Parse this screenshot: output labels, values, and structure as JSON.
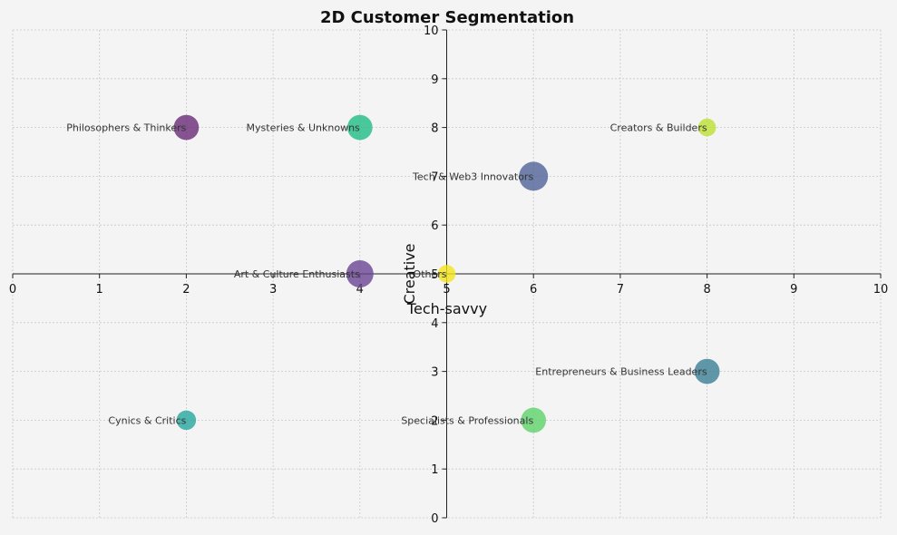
{
  "chart_data": {
    "type": "scatter",
    "title": "2D Customer Segmentation",
    "xlabel": "Tech-savvy",
    "ylabel": "Creative",
    "xlim": [
      0,
      10
    ],
    "ylim": [
      0,
      10
    ],
    "xticks": [
      0,
      1,
      2,
      3,
      4,
      5,
      6,
      7,
      8,
      9,
      10
    ],
    "yticks": [
      0,
      1,
      2,
      3,
      4,
      5,
      6,
      7,
      8,
      9,
      10
    ],
    "grid": true,
    "axes_centered": true,
    "points": [
      {
        "label": "Philosophers & Thinkers",
        "x": 2,
        "y": 8,
        "size": 3,
        "color": "#6a2a78"
      },
      {
        "label": "Mysteries & Unknowns",
        "x": 4,
        "y": 8,
        "size": 3,
        "color": "#1fbd86"
      },
      {
        "label": "Creators & Builders",
        "x": 8,
        "y": 8,
        "size": 1.5,
        "color": "#bde032"
      },
      {
        "label": "Tech & Web3 Innovators",
        "x": 6,
        "y": 7,
        "size": 4,
        "color": "#4f6399"
      },
      {
        "label": "Art & Culture Enthusiasts",
        "x": 4,
        "y": 5,
        "size": 3.5,
        "color": "#6a4594"
      },
      {
        "label": "Others",
        "x": 5,
        "y": 5,
        "size": 1.5,
        "color": "#f4e51e"
      },
      {
        "label": "Entrepreneurs & Business Leaders",
        "x": 8,
        "y": 3,
        "size": 3,
        "color": "#3a7f95"
      },
      {
        "label": "Cynics & Critics",
        "x": 2,
        "y": 2,
        "size": 1.8,
        "color": "#26a89e"
      },
      {
        "label": "Specialists & Professionals",
        "x": 6,
        "y": 2,
        "size": 3,
        "color": "#5ed36a"
      }
    ]
  }
}
